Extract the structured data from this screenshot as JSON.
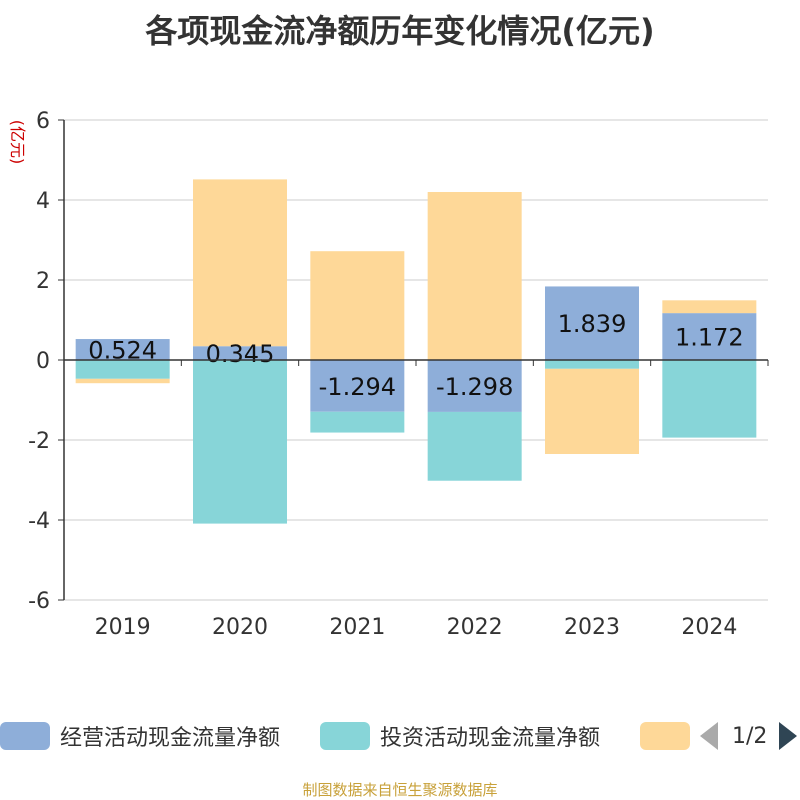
{
  "chart_data": {
    "type": "bar",
    "stacked": true,
    "title": "各项现金流净额历年变化情况(亿元)",
    "ylabel": "(亿元)",
    "xlabel": "",
    "ylim": [
      -6,
      6
    ],
    "yticks": [
      6,
      4,
      2,
      0,
      -2,
      -4,
      -6
    ],
    "categories": [
      "2019",
      "2020",
      "2021",
      "2022",
      "2023",
      "2024"
    ],
    "series": [
      {
        "name": "经营活动现金流量净额",
        "color": "#8eaed9",
        "values": [
          0.524,
          0.345,
          -1.294,
          -1.298,
          1.839,
          1.172
        ],
        "labels": [
          "0.524",
          "0.345",
          "-1.294",
          "-1.298",
          "1.839",
          "1.172"
        ]
      },
      {
        "name": "投资活动现金流量净额",
        "color": "#87d5d8",
        "values": [
          -0.47,
          -4.09,
          -0.52,
          -1.72,
          -0.22,
          -1.94
        ]
      },
      {
        "name": "",
        "color": "#fed898",
        "values": [
          -0.11,
          4.17,
          2.72,
          4.2,
          -2.13,
          0.32
        ]
      }
    ]
  },
  "legend": {
    "items": [
      {
        "label": "经营活动现金流量净额",
        "color": "#8eaed9"
      },
      {
        "label": "投资活动现金流量净额",
        "color": "#87d5d8"
      },
      {
        "label": "",
        "color": "#fed898"
      }
    ],
    "page": "1/2"
  },
  "source": "制图数据来自恒生聚源数据库"
}
